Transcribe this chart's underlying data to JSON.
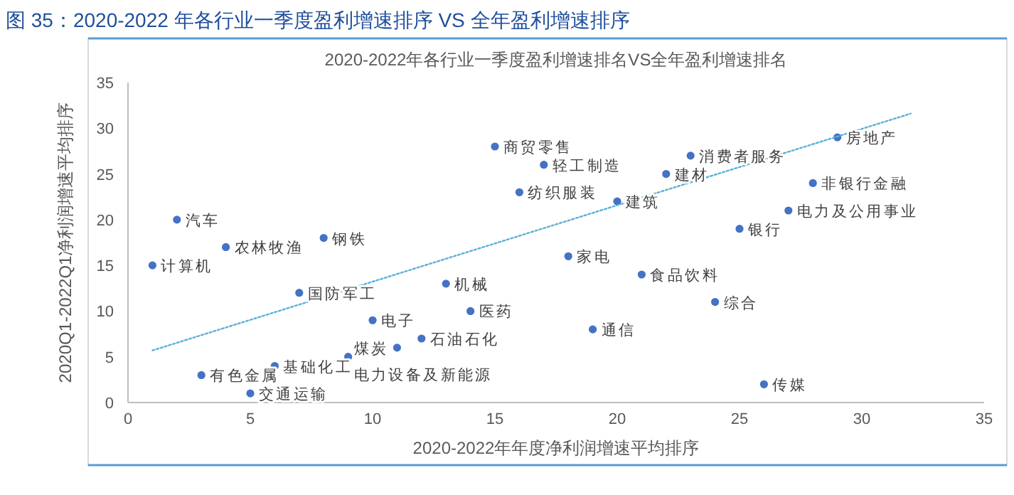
{
  "chart_data": {
    "type": "scatter",
    "title": "图 35：2020-2022 年各行业一季度盈利增速排序 VS 全年盈利增速排序",
    "subtitle": "2020-2022年各行业一季度盈利增速排名VS全年盈利增速排名",
    "xlabel": "2020-2022年年度净利润增速平均排序",
    "ylabel": "2020Q1-2022Q1净利润增速平均排序",
    "xlim": [
      0,
      35
    ],
    "xticks": [
      0,
      5,
      10,
      15,
      20,
      25,
      30,
      35
    ],
    "ylim": [
      0,
      35
    ],
    "yticks": [
      0,
      5,
      10,
      15,
      20,
      25,
      30,
      35
    ],
    "grid": false,
    "marker": "circle",
    "series": [
      {
        "color": "#4472c4",
        "x": [
          1,
          2,
          3,
          4,
          5,
          6,
          7,
          8,
          9,
          10,
          11,
          12,
          13,
          14,
          15,
          16,
          17,
          18,
          19,
          20,
          21,
          22,
          23,
          24,
          25,
          26,
          27,
          28,
          29
        ],
        "values": [
          15,
          20,
          3,
          17,
          1,
          4,
          12,
          18,
          5,
          9,
          6,
          7,
          13,
          10,
          28,
          23,
          26,
          16,
          8,
          22,
          14,
          25,
          27,
          11,
          19,
          2,
          21,
          24,
          29
        ]
      },
      {
        "type": "line",
        "color": "#5bb0d8",
        "line_style": "dotted",
        "marker": "none",
        "x": [
          1,
          32
        ],
        "values": [
          5.7,
          31.6
        ]
      }
    ],
    "annotations": [
      {
        "text": "计算机",
        "x": 1,
        "y": 15
      },
      {
        "text": "汽车",
        "x": 2,
        "y": 20
      },
      {
        "text": "有色金属",
        "x": 3,
        "y": 3
      },
      {
        "text": "农林牧渔",
        "x": 4,
        "y": 17
      },
      {
        "text": "交通运输",
        "x": 5,
        "y": 1
      },
      {
        "text": "基础化工",
        "x": 6,
        "y": 4
      },
      {
        "text": "国防军工",
        "x": 7,
        "y": 12
      },
      {
        "text": "钢铁",
        "x": 8,
        "y": 18
      },
      {
        "text": "电力设备及新能源",
        "x": 9,
        "y": 5
      },
      {
        "text": "电子",
        "x": 10,
        "y": 9
      },
      {
        "text": "煤炭",
        "x": 11,
        "y": 6
      },
      {
        "text": "石油石化",
        "x": 12,
        "y": 7
      },
      {
        "text": "机械",
        "x": 13,
        "y": 13
      },
      {
        "text": "医药",
        "x": 14,
        "y": 10
      },
      {
        "text": "商贸零售",
        "x": 15,
        "y": 28
      },
      {
        "text": "纺织服装",
        "x": 16,
        "y": 23
      },
      {
        "text": "轻工制造",
        "x": 17,
        "y": 26
      },
      {
        "text": "家电",
        "x": 18,
        "y": 16
      },
      {
        "text": "通信",
        "x": 19,
        "y": 8
      },
      {
        "text": "建筑",
        "x": 20,
        "y": 22
      },
      {
        "text": "食品饮料",
        "x": 21,
        "y": 14
      },
      {
        "text": "建材",
        "x": 22,
        "y": 25
      },
      {
        "text": "消费者服务",
        "x": 23,
        "y": 27
      },
      {
        "text": "综合",
        "x": 24,
        "y": 11
      },
      {
        "text": "银行",
        "x": 25,
        "y": 19
      },
      {
        "text": "传媒",
        "x": 26,
        "y": 2
      },
      {
        "text": "电力及公用事业",
        "x": 27,
        "y": 21
      },
      {
        "text": "非银行金融",
        "x": 28,
        "y": 24
      },
      {
        "text": "房地产",
        "x": 29,
        "y": 29
      }
    ]
  }
}
